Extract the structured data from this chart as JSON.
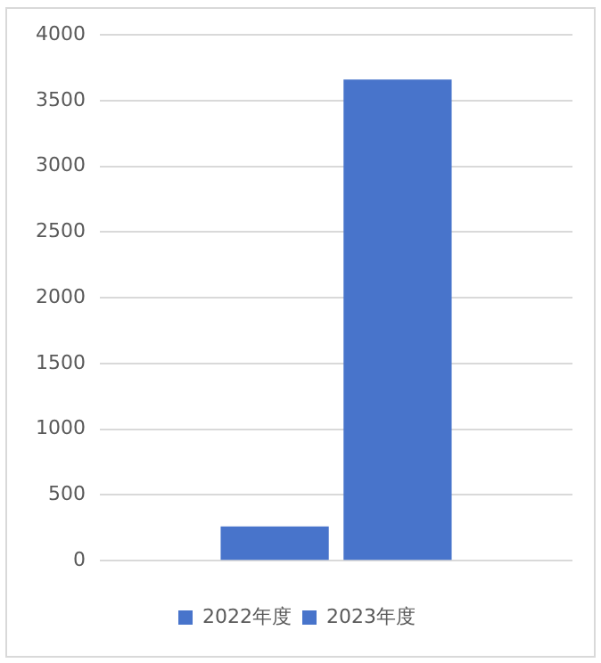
{
  "chart_data": {
    "type": "bar",
    "categories": [
      null
    ],
    "series": [
      {
        "name": "2022年度",
        "color": "#4874cb",
        "values": [
          260
        ]
      },
      {
        "name": "2023年度",
        "color": "#4874cb",
        "values": [
          3660
        ]
      }
    ],
    "ylim": [
      0,
      4000
    ],
    "yticks": [
      0,
      500,
      1000,
      1500,
      2000,
      2500,
      3000,
      3500,
      4000
    ],
    "grid": "y",
    "legend": "bottom"
  }
}
